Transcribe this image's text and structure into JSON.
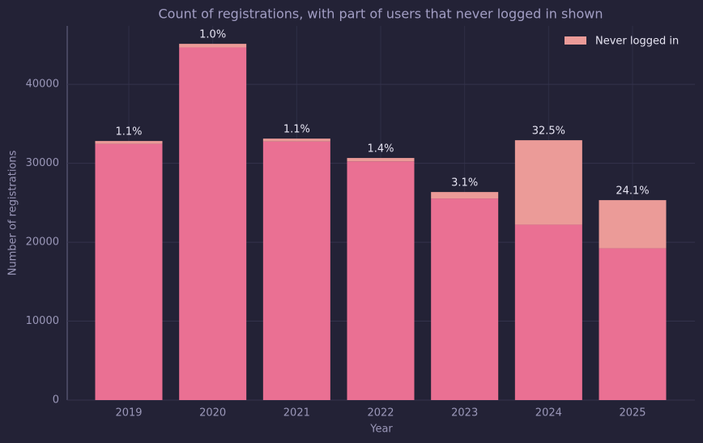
{
  "chart_data": {
    "type": "stacked_bar",
    "title": "Count of registrations, with part of users that never logged in shown",
    "x_label": "Year",
    "y_label": "Number of registrations",
    "categories": [
      "2019",
      "2020",
      "2021",
      "2022",
      "2023",
      "2024",
      "2025"
    ],
    "series": [
      {
        "color": "#ea7093",
        "values": [
          32460,
          44680,
          32760,
          30240,
          25540,
          22220,
          19230
        ]
      },
      {
        "name": "Never logged in",
        "color": "#eb9b98",
        "values": [
          361,
          451,
          364,
          429,
          817,
          10700,
          6100
        ]
      }
    ],
    "share_labels": {
      "values": [
        1.1,
        1.0,
        1.1,
        1.4,
        3.1,
        32.5,
        24.1
      ],
      "value_labels": [
        "1.1%",
        "1.0%",
        "1.1%",
        "1.4%",
        "3.1%",
        "32.5%",
        "24.1%"
      ]
    },
    "ylim": [
      0,
      47400
    ],
    "yticks": [
      0,
      10000,
      20000,
      30000,
      40000
    ],
    "grid": true,
    "legend": "upper right"
  }
}
